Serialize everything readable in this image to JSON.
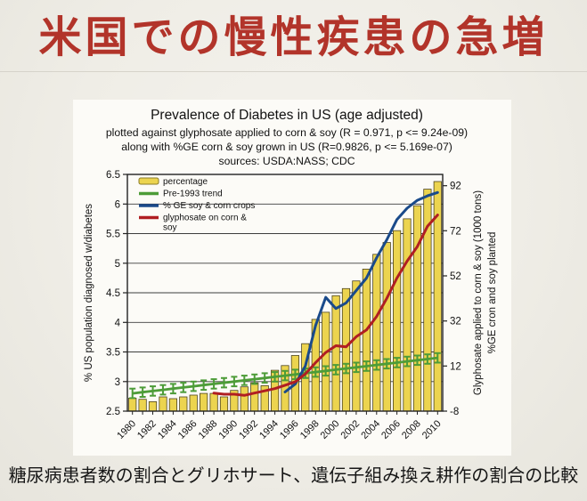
{
  "slide": {
    "title": "米国での慢性疾患の急増",
    "caption": "糖尿病患者数の割合とグリホサート、遺伝子組み換え耕作の割合の比較",
    "title_color": "#b2342a",
    "background_color": "#efede6",
    "chart_background_color": "#fcfbf7"
  },
  "chart_data": {
    "type": "bar",
    "combo": "bar + line, dual y-axis",
    "title": "Prevalence of Diabetes in US (age adjusted)",
    "subtitles": [
      "plotted against glyphosate applied to corn & soy (R = 0.971, p <= 9.24e-09)",
      "along with %GE corn & soy grown in US (R=0.9826, p <= 5.169e-07)",
      "sources: USDA:NASS; CDC"
    ],
    "ylabel_left": "% US population diagnosed w/diabetes",
    "ylabel_right_lines": [
      "Glyphosate applied to corn & soy (1000 tons)",
      "%GE cron and soy planted"
    ],
    "axis_left": {
      "min": 2.5,
      "max": 6.5,
      "ticks": [
        6.5,
        6,
        5.5,
        5,
        4.5,
        4,
        3.5,
        3,
        2.5
      ]
    },
    "axis_right": {
      "min": -8,
      "max": 97,
      "ticks": [
        92,
        72,
        52,
        32,
        12,
        -8
      ]
    },
    "grid": "horizontal, every 0.5 of left axis",
    "legend_position": "top-left inside plot",
    "years": [
      1980,
      1981,
      1982,
      1983,
      1984,
      1985,
      1986,
      1987,
      1988,
      1989,
      1990,
      1991,
      1992,
      1993,
      1994,
      1995,
      1996,
      1997,
      1998,
      1999,
      2000,
      2001,
      2002,
      2003,
      2004,
      2005,
      2006,
      2007,
      2008,
      2009,
      2010
    ],
    "x_tick_label_years": [
      1980,
      1982,
      1984,
      1986,
      1988,
      1990,
      1992,
      1994,
      1996,
      1998,
      2000,
      2002,
      2004,
      2006,
      2008,
      2010
    ],
    "series": [
      {
        "name": "percentage",
        "kind": "bar",
        "axis": "left",
        "color": "#ecd44f",
        "border": "#4c4420",
        "values": [
          2.72,
          2.7,
          2.66,
          2.74,
          2.71,
          2.74,
          2.77,
          2.8,
          2.8,
          2.74,
          2.85,
          2.91,
          2.98,
          2.93,
          3.19,
          3.27,
          3.44,
          3.64,
          4.05,
          4.17,
          4.45,
          4.57,
          4.7,
          4.9,
          5.15,
          5.35,
          5.55,
          5.75,
          5.97,
          6.25,
          6.38
        ]
      },
      {
        "name": "Pre-1993 trend",
        "kind": "line-with-error-bars",
        "axis": "left",
        "color": "#4d9c38",
        "error": 0.08,
        "values": [
          2.8,
          2.82,
          2.84,
          2.86,
          2.88,
          2.9,
          2.92,
          2.94,
          2.96,
          2.98,
          3.0,
          3.02,
          3.04,
          3.06,
          3.08,
          3.1,
          3.12,
          3.14,
          3.16,
          3.18,
          3.2,
          3.22,
          3.24,
          3.26,
          3.28,
          3.3,
          3.32,
          3.34,
          3.36,
          3.38,
          3.4
        ]
      },
      {
        "name": "% GE soy & corn crops",
        "kind": "line",
        "axis": "right",
        "color": "#1a4a8a",
        "values": [
          null,
          null,
          null,
          null,
          null,
          null,
          null,
          null,
          null,
          null,
          null,
          null,
          null,
          null,
          null,
          0.5,
          4,
          12,
          30,
          42.5,
          37.5,
          40,
          45.5,
          51,
          60,
          68,
          77,
          82,
          85.5,
          87.5,
          89
        ]
      },
      {
        "name": "glyphosate on corn & soy",
        "kind": "line",
        "axis": "right",
        "color": "#b01e22",
        "values": [
          null,
          null,
          null,
          null,
          null,
          null,
          null,
          null,
          0,
          -0.5,
          -0.5,
          -1,
          0,
          1,
          2,
          3.5,
          5,
          8.5,
          13.5,
          18,
          21,
          20.5,
          25,
          28,
          34,
          42,
          51,
          58.5,
          65,
          74,
          79
        ]
      }
    ],
    "legend": [
      {
        "swatch": "box",
        "color": "#ecd44f",
        "border": "#8a7b28",
        "lines": [
          "percentage"
        ]
      },
      {
        "swatch": "line",
        "color": "#4d9c38",
        "lines": [
          "Pre-1993 trend"
        ]
      },
      {
        "swatch": "line",
        "color": "#1a4a8a",
        "lines": [
          "% GE soy & corn crops"
        ]
      },
      {
        "swatch": "line",
        "color": "#b01e22",
        "lines": [
          "glyphosate on corn &",
          "soy"
        ]
      }
    ]
  }
}
